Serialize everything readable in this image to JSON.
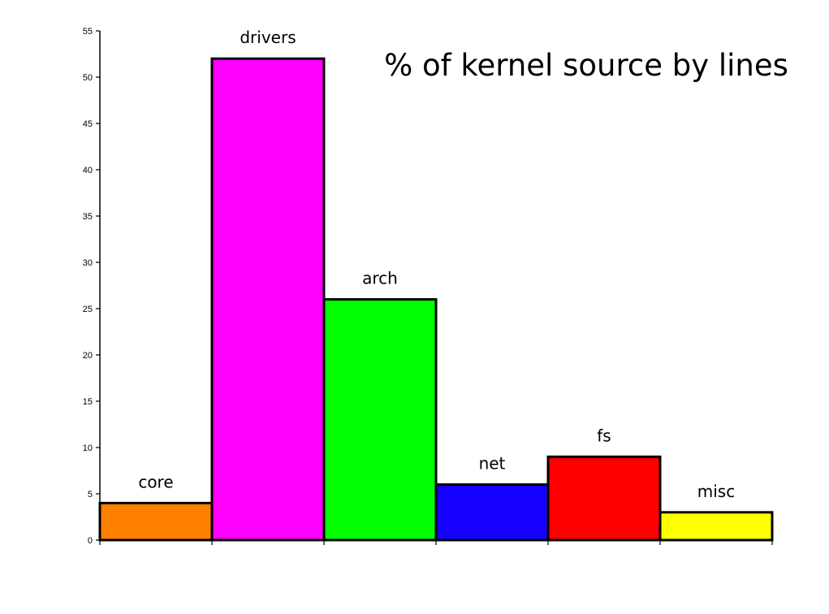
{
  "chart_data": {
    "type": "bar",
    "title": "% of kernel source by lines",
    "xlabel": "",
    "ylabel": "",
    "categories": [
      "core",
      "drivers",
      "arch",
      "net",
      "fs",
      "misc"
    ],
    "values": [
      4,
      52,
      26,
      6,
      9,
      3
    ],
    "colors": [
      "#ff7f00",
      "#ff00ff",
      "#00ff00",
      "#1500ff",
      "#ff0000",
      "#ffff00"
    ],
    "ylim": [
      0,
      55
    ],
    "yticks": [
      0,
      5,
      10,
      15,
      20,
      25,
      30,
      35,
      40,
      45,
      50,
      55
    ],
    "grid": false,
    "legend": "none"
  }
}
